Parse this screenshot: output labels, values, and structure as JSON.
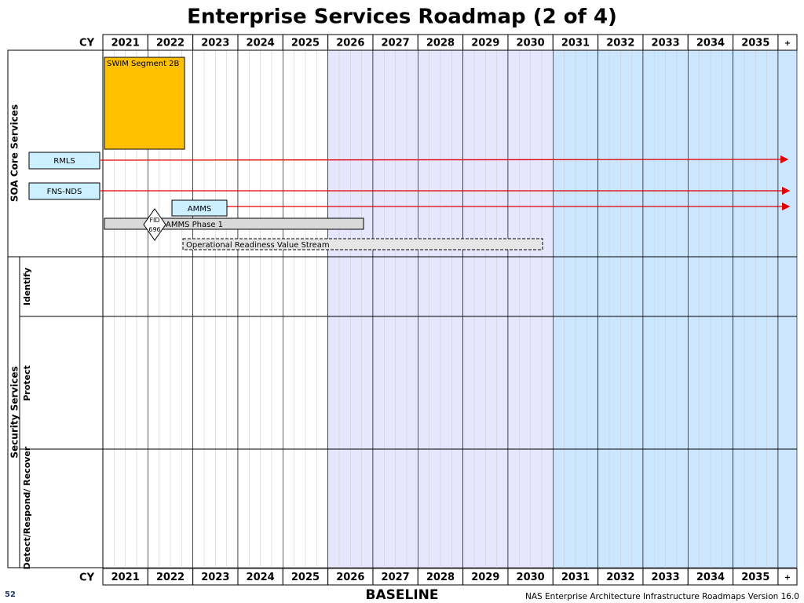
{
  "title": "Enterprise Services Roadmap (2 of 4)",
  "axis": {
    "label": "CY",
    "years": [
      "2021",
      "2022",
      "2023",
      "2024",
      "2025",
      "2026",
      "2027",
      "2028",
      "2029",
      "2030",
      "2031",
      "2032",
      "2033",
      "2034",
      "2035",
      "+"
    ]
  },
  "sections": [
    {
      "label": "SOA Core Services"
    },
    {
      "label": "Security Services",
      "rows": [
        "Identify",
        "Protect",
        "Detect/Respond/ Recover"
      ]
    }
  ],
  "items": {
    "swim": "SWIM Segment 2B",
    "rmls": "RMLS",
    "fns": "FNS-NDS",
    "amms": "AMMS",
    "fid": "FID 696",
    "amms_phase": "AMMS Phase 1",
    "orvs": "Operational Readiness Value Stream"
  },
  "footer": {
    "page": "52",
    "center": "BASELINE",
    "right": "NAS Enterprise Architecture Infrastructure Roadmaps Version 16.0"
  }
}
